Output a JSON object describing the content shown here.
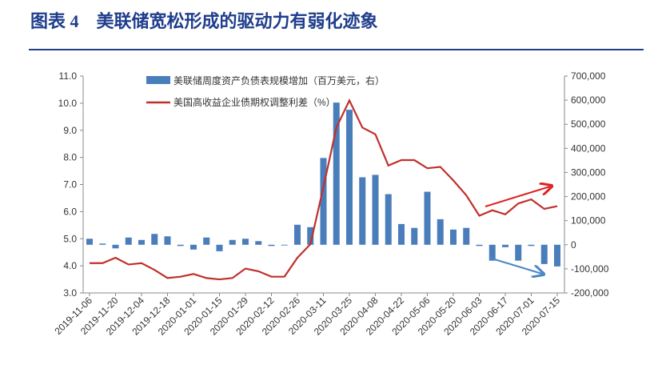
{
  "chart_data": {
    "type": "bar-line",
    "title": "图表 4　美联储宽松形成的驱动力有弱化迹象",
    "categories": [
      "2019-11-06",
      null,
      "2019-11-20",
      null,
      "2019-12-04",
      null,
      "2019-12-18",
      null,
      "2020-01-01",
      null,
      "2020-01-15",
      null,
      "2020-01-29",
      null,
      "2020-02-12",
      null,
      "2020-02-26",
      null,
      "2020-03-11",
      null,
      "2020-03-25",
      null,
      "2020-04-08",
      null,
      "2020-04-22",
      null,
      "2020-05-06",
      null,
      "2020-05-20",
      null,
      "2020-06-03",
      null,
      "2020-06-17",
      null,
      "2020-07-01",
      null,
      "2020-07-15"
    ],
    "series": [
      {
        "name": "美联储周度资产负债表规模增加（百万美元，右）",
        "kind": "bar",
        "axis": "y2",
        "color": "#4a7ebb",
        "values": [
          25000,
          5000,
          -15000,
          30000,
          20000,
          45000,
          35000,
          -5000,
          -20000,
          30000,
          -27000,
          20000,
          25000,
          15000,
          -5000,
          -3000,
          83000,
          73000,
          360000,
          590000,
          560000,
          280000,
          290000,
          210000,
          86000,
          70000,
          220000,
          106000,
          63000,
          70000,
          -5000,
          -66000,
          -10000,
          -66000,
          -5000,
          -80000,
          -90000
        ]
      },
      {
        "name": "美国高收益企业债期权调整利差（%）",
        "kind": "line",
        "color": "#c0302b",
        "values": [
          4.1,
          4.1,
          4.3,
          4.05,
          4.1,
          3.85,
          3.55,
          3.6,
          3.7,
          3.55,
          3.5,
          3.55,
          3.9,
          3.8,
          3.6,
          3.6,
          4.3,
          4.8,
          6.9,
          9.1,
          10.1,
          9.1,
          8.85,
          7.7,
          7.9,
          7.9,
          7.6,
          7.65,
          7.15,
          6.6,
          5.85,
          6.05,
          5.9,
          6.3,
          6.45,
          6.1,
          6.2
        ]
      }
    ],
    "ylim": [
      3,
      11
    ],
    "yticks": [
      {
        "value": 3,
        "label": "3.0"
      },
      {
        "value": 4,
        "label": "4.0"
      },
      {
        "value": 5,
        "label": "5.0"
      },
      {
        "value": 6,
        "label": "6.0"
      },
      {
        "value": 7,
        "label": "7.0"
      },
      {
        "value": 8,
        "label": "8.0"
      },
      {
        "value": 9,
        "label": "9.0"
      },
      {
        "value": 10,
        "label": "10.0"
      },
      {
        "value": 11,
        "label": "11.0"
      }
    ],
    "y2lim": [
      -200000,
      700000
    ],
    "y2ticks": [
      {
        "value": -200000,
        "label": "-200,000"
      },
      {
        "value": -100000,
        "label": "-100,000"
      },
      0,
      {
        "value": 100000,
        "label": "100,000"
      },
      {
        "value": 200000,
        "label": "200,000"
      },
      {
        "value": 300000,
        "label": "300,000"
      },
      {
        "value": 400000,
        "label": "400,000"
      },
      {
        "value": 500000,
        "label": "500,000"
      },
      {
        "value": 600000,
        "label": "600,000"
      },
      {
        "value": 700000,
        "label": "700,000"
      }
    ],
    "grid": false
  }
}
